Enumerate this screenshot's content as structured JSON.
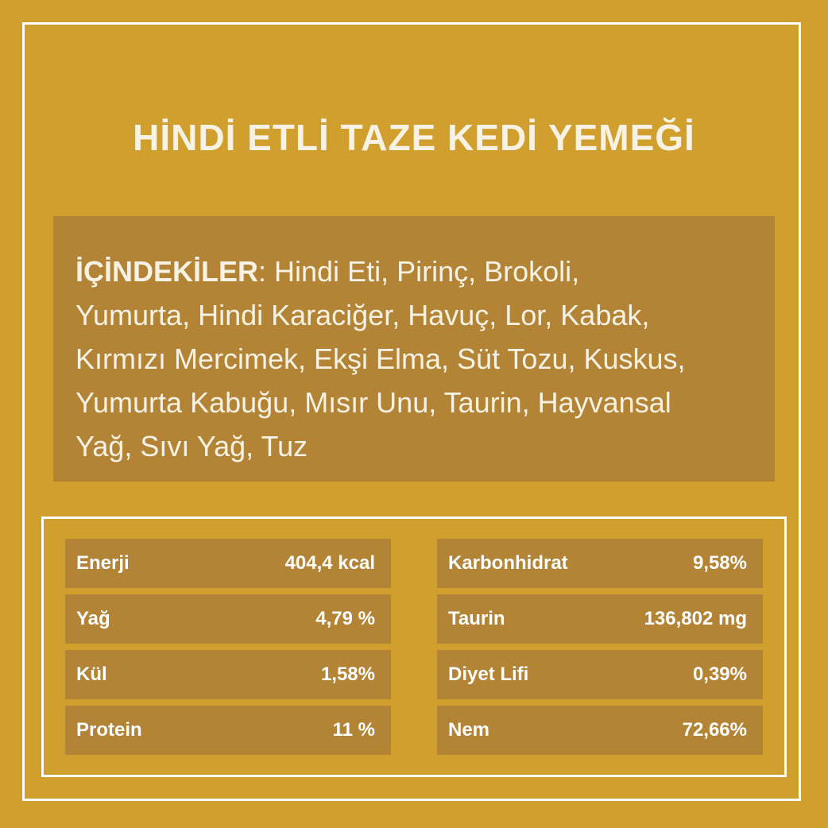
{
  "title": "HİNDİ ETLİ TAZE KEDİ YEMEĞİ",
  "ingredients": {
    "label": "İÇİNDEKİLER",
    "lines": [
      ": Hindi Eti, Pirinç, Brokoli,",
      "Yumurta, Hindi Karaciğer, Havuç, Lor, Kabak,",
      "Kırmızı Mercimek, Ekşi Elma, Süt Tozu, Kuskus,",
      "Yumurta Kabuğu, Mısır Unu, Taurin, Hayvansal",
      "Yağ, Sıvı Yağ, Tuz"
    ]
  },
  "nutrition": {
    "left": [
      {
        "name": "Enerji",
        "value": "404,4 kcal"
      },
      {
        "name": "Yağ",
        "value": "4,79 %"
      },
      {
        "name": "Kül",
        "value": "1,58%"
      },
      {
        "name": "Protein",
        "value": "11 %"
      }
    ],
    "right": [
      {
        "name": "Karbonhidrat",
        "value": "9,58%"
      },
      {
        "name": "Taurin",
        "value": "136,802 mg"
      },
      {
        "name": "Diyet Lifi",
        "value": "0,39%"
      },
      {
        "name": "Nem",
        "value": "72,66%"
      }
    ]
  },
  "colors": {
    "background": "#D09F2D",
    "panel": "#B38436",
    "text": "#F7F2E4",
    "border": "#FFFFFF"
  }
}
